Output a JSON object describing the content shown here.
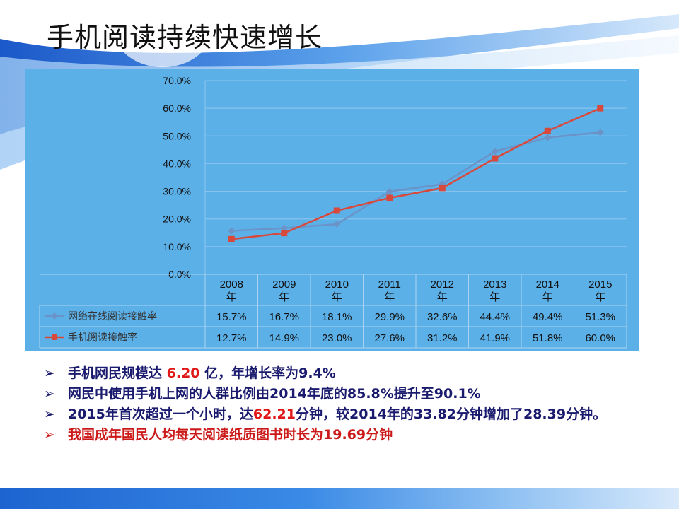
{
  "slide": {
    "title": "手机阅读持续快速增长"
  },
  "chart_data": {
    "type": "line",
    "categories": [
      "2008年",
      "2009年",
      "2010年",
      "2011年",
      "2012年",
      "2013年",
      "2014年",
      "2015年"
    ],
    "category_years": [
      "2008",
      "2009",
      "2010",
      "2011",
      "2012",
      "2013",
      "2014",
      "2015"
    ],
    "category_suffix": "年",
    "y_ticks": [
      "0.0%",
      "10.0%",
      "20.0%",
      "30.0%",
      "40.0%",
      "50.0%",
      "60.0%",
      "70.0%"
    ],
    "ylim": [
      0,
      70
    ],
    "grid": true,
    "legend_placement": "data-table-left",
    "series": [
      {
        "name": "网络在线阅读接触率",
        "color": "#6b93c8",
        "marker": "diamond",
        "values": [
          15.7,
          16.7,
          18.1,
          29.9,
          32.6,
          44.4,
          49.4,
          51.3
        ],
        "labels": [
          "15.7%",
          "16.7%",
          "18.1%",
          "29.9%",
          "32.6%",
          "44.4%",
          "49.4%",
          "51.3%"
        ]
      },
      {
        "name": "手机阅读接触率",
        "color": "#d8493c",
        "marker": "square",
        "values": [
          12.7,
          14.9,
          23.0,
          27.6,
          31.2,
          41.9,
          51.8,
          60.0
        ],
        "labels": [
          "12.7%",
          "14.9%",
          "23.0%",
          "27.6%",
          "31.2%",
          "41.9%",
          "51.8%",
          "60.0%"
        ]
      }
    ]
  },
  "bullets": {
    "arrow": "➢",
    "b1_pre": "手机网民规模达 ",
    "b1_hl": "6.20",
    "b1_post": " 亿，年增长率为9.4%",
    "b2": "网民中使用手机上网的人群比例由2014年底的85.8%提升至90.1%",
    "b3_pre": "2015年首次超过一个小时，达",
    "b3_hl": "62.21",
    "b3_post": "分钟，较2014年的33.82分钟增加了28.39分钟。",
    "b4": "我国成年国民人均每天阅读纸质图书时长为19.69分钟"
  },
  "colors": {
    "panel_bg": "#5cb0e8",
    "highlight": "#e01818",
    "bullet_text": "#1a1a6e"
  }
}
